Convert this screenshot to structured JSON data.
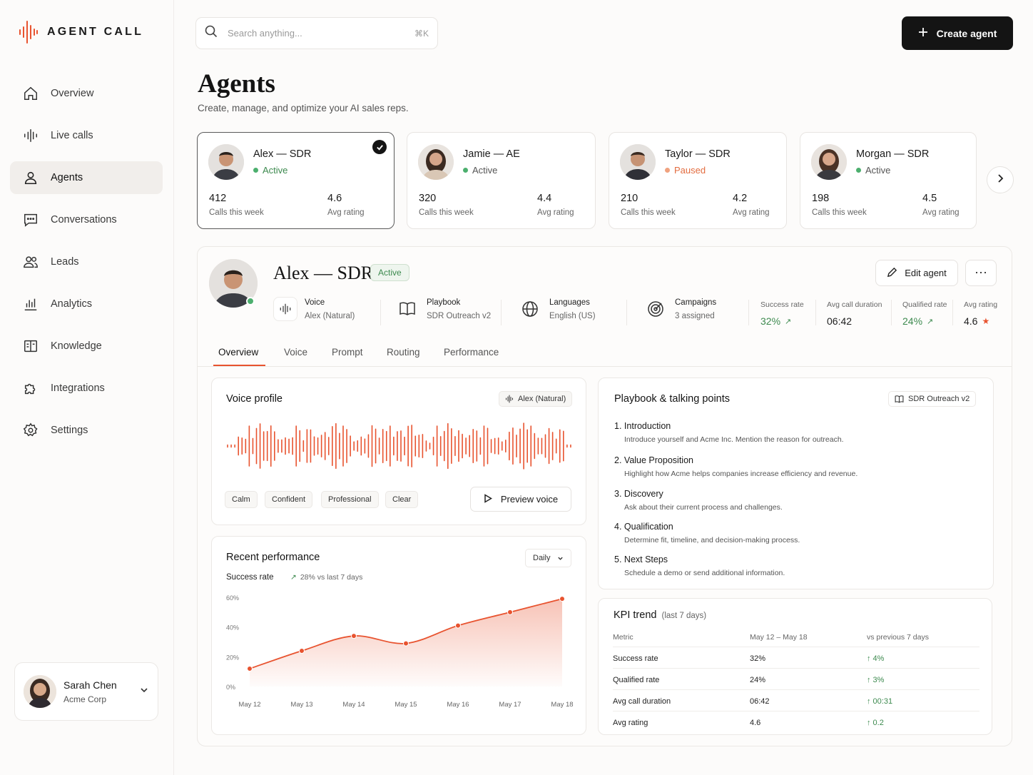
{
  "app": {
    "name": "AGENT CALL",
    "brand_color": "#e8532f"
  },
  "sidebar": {
    "items": [
      {
        "label": "Overview",
        "icon": "home-icon"
      },
      {
        "label": "Live calls",
        "icon": "waveform-icon"
      },
      {
        "label": "Agents",
        "icon": "user-icon",
        "active": true
      },
      {
        "label": "Conversations",
        "icon": "chat-icon"
      },
      {
        "label": "Leads",
        "icon": "users-icon"
      },
      {
        "label": "Analytics",
        "icon": "bar-chart-icon"
      },
      {
        "label": "Knowledge",
        "icon": "book-icon"
      },
      {
        "label": "Integrations",
        "icon": "puzzle-icon"
      },
      {
        "label": "Settings",
        "icon": "gear-icon"
      }
    ],
    "user": {
      "name": "Sarah Chen",
      "org": "Acme Corp"
    }
  },
  "search": {
    "placeholder": "Search anything...",
    "shortcut": "⌘K"
  },
  "header": {
    "create_label": "Create agent",
    "title": "Agents",
    "subtitle": "Create, manage, and optimize your AI sales reps."
  },
  "agents": [
    {
      "name": "Alex — SDR",
      "status": "Active",
      "calls": "412",
      "calls_label": "Calls this week",
      "rating": "4.6",
      "rating_label": "Avg rating",
      "selected": true
    },
    {
      "name": "Jamie — AE",
      "status": "Active",
      "calls": "320",
      "calls_label": "Calls this week",
      "rating": "4.4",
      "rating_label": "Avg rating"
    },
    {
      "name": "Taylor — SDR",
      "status": "Paused",
      "calls": "210",
      "calls_label": "Calls this week",
      "rating": "4.2",
      "rating_label": "Avg rating"
    },
    {
      "name": "Morgan — SDR",
      "status": "Active",
      "calls": "198",
      "calls_label": "Calls this week",
      "rating": "4.5",
      "rating_label": "Avg rating"
    }
  ],
  "detail": {
    "name": "Alex — SDR",
    "status": "Active",
    "edit_label": "Edit agent",
    "more_label": "⋯",
    "meta": [
      {
        "label": "Voice",
        "value": "Alex (Natural)"
      },
      {
        "label": "Playbook",
        "value": "SDR Outreach v2"
      },
      {
        "label": "Languages",
        "value": "English (US)"
      },
      {
        "label": "Campaigns",
        "value": "3 assigned"
      }
    ],
    "stats": [
      {
        "label": "Success rate",
        "value": "32%",
        "arrow": "↗"
      },
      {
        "label": "Avg call duration",
        "value": "06:42"
      },
      {
        "label": "Qualified rate",
        "value": "24%",
        "arrow": "↗"
      },
      {
        "label": "Avg rating",
        "value": "4.6",
        "star": "★"
      }
    ],
    "tabs": [
      "Overview",
      "Voice",
      "Prompt",
      "Routing",
      "Performance"
    ]
  },
  "voice_profile": {
    "title": "Voice profile",
    "voice_chip": "Alex (Natural)",
    "tags": [
      "Calm",
      "Confident",
      "Professional",
      "Clear"
    ],
    "preview_label": "Preview voice"
  },
  "performance": {
    "title": "Recent performance",
    "period": "Daily",
    "metric_label": "Success rate",
    "delta": "28% vs last 7 days",
    "delta_arrow": "↗"
  },
  "chart_data": {
    "type": "area",
    "categories": [
      "May 12",
      "May 13",
      "May 14",
      "May 15",
      "May 16",
      "May 17",
      "May 18"
    ],
    "y_ticks": [
      "0%",
      "20%",
      "40%",
      "60%"
    ],
    "ylim": [
      0,
      60
    ],
    "series": [
      {
        "values": [
          12,
          24,
          34,
          29,
          41,
          50,
          59
        ]
      }
    ]
  },
  "playbook": {
    "title": "Playbook & talking points",
    "chip": "SDR Outreach v2",
    "items": [
      {
        "num": "1.",
        "title": "Introduction",
        "desc": "Introduce yourself and Acme Inc. Mention the reason for outreach."
      },
      {
        "num": "2.",
        "title": "Value Proposition",
        "desc": "Highlight how Acme helps companies increase efficiency and revenue."
      },
      {
        "num": "3.",
        "title": "Discovery",
        "desc": "Ask about their current process and challenges."
      },
      {
        "num": "4.",
        "title": "Qualification",
        "desc": "Determine fit, timeline, and decision-making process."
      },
      {
        "num": "5.",
        "title": "Next Steps",
        "desc": "Schedule a demo or send additional information."
      }
    ]
  },
  "kpi": {
    "title": "KPI trend",
    "subtitle": "(last 7 days)",
    "headers": [
      "Metric",
      "May 12 – May 18",
      "vs previous 7 days"
    ],
    "rows": [
      {
        "metric": "Success rate",
        "value": "32%",
        "change": "↑ 4%"
      },
      {
        "metric": "Qualified rate",
        "value": "24%",
        "change": "↑ 3%"
      },
      {
        "metric": "Avg call duration",
        "value": "06:42",
        "change": "↑ 00:31"
      },
      {
        "metric": "Avg rating",
        "value": "4.6",
        "change": "↑ 0.2"
      }
    ]
  }
}
